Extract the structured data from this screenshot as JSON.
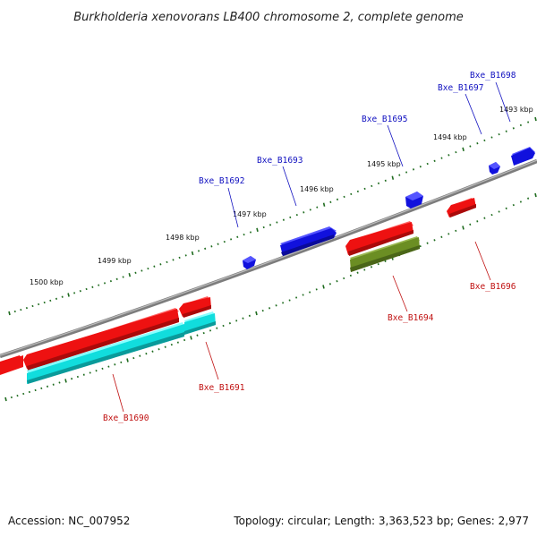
{
  "title": "Burkholderia xenovorans LB400 chromosome 2, complete genome",
  "footer": {
    "accession": "Accession: NC_007952",
    "summary": "Topology: circular; Length: 3,363,523 bp; Genes: 2,977"
  },
  "colors": {
    "backbone": "#888888",
    "tick": "#1e6b1e",
    "forward_label": "#1010c0",
    "reverse_label": "#c01010",
    "red_gene": "#ee1111",
    "blue_gene": "#1111dd",
    "cyan_gene": "#11dddd",
    "olive_gene": "#6b8e23"
  },
  "scale_labels": [
    "1500 kbp",
    "1499 kbp",
    "1498 kbp",
    "1497 kbp",
    "1496 kbp",
    "1495 kbp",
    "1494 kbp",
    "1493 kbp"
  ],
  "genes": [
    {
      "name": "Bxe_B1690",
      "label_color": "#c01010"
    },
    {
      "name": "Bxe_B1691",
      "label_color": "#c01010"
    },
    {
      "name": "Bxe_B1692",
      "label_color": "#1010c0"
    },
    {
      "name": "Bxe_B1693",
      "label_color": "#1010c0"
    },
    {
      "name": "Bxe_B1694",
      "label_color": "#c01010"
    },
    {
      "name": "Bxe_B1695",
      "label_color": "#1010c0"
    },
    {
      "name": "Bxe_B1696",
      "label_color": "#c01010"
    },
    {
      "name": "Bxe_B1697",
      "label_color": "#1010c0"
    },
    {
      "name": "Bxe_B1698",
      "label_color": "#1010c0"
    }
  ]
}
